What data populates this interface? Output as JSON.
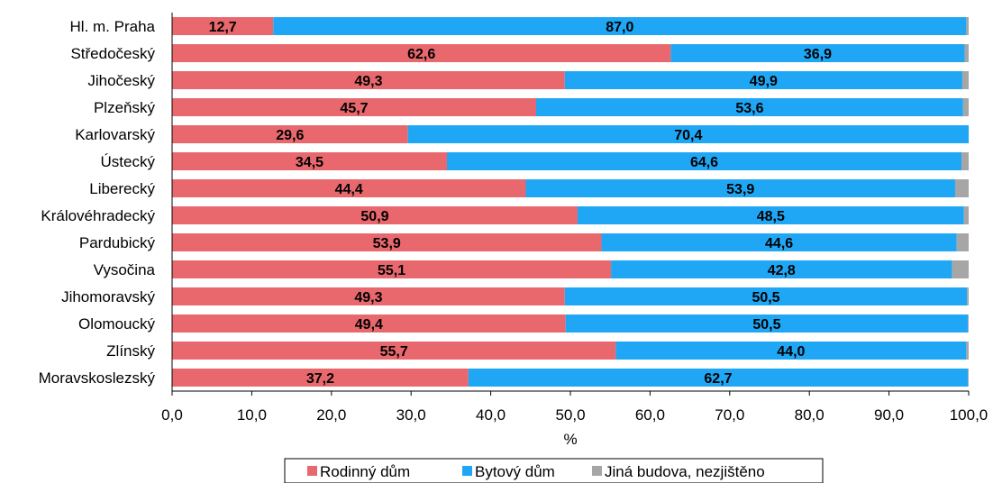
{
  "chart_data": {
    "type": "bar",
    "orientation": "horizontal",
    "stacked": true,
    "categories": [
      "Hl. m. Praha",
      "Středočeský",
      "Jihočeský",
      "Plzeňský",
      "Karlovarský",
      "Ústecký",
      "Liberecký",
      "Královéhradecký",
      "Pardubický",
      "Vysočina",
      "Jihomoravský",
      "Olomoucký",
      "Zlínský",
      "Moravskoslezský"
    ],
    "series": [
      {
        "name": "Rodinný dům",
        "color": "#E8686E",
        "values": [
          12.7,
          62.6,
          49.3,
          45.7,
          29.6,
          34.5,
          44.4,
          50.9,
          53.9,
          55.1,
          49.3,
          49.4,
          55.7,
          37.2
        ],
        "labels": [
          "12,7",
          "62,6",
          "49,3",
          "45,7",
          "29,6",
          "34,5",
          "44,4",
          "50,9",
          "53,9",
          "55,1",
          "49,3",
          "49,4",
          "55,7",
          "37,2"
        ]
      },
      {
        "name": "Bytový dům",
        "color": "#1FA7F5",
        "values": [
          87.0,
          36.9,
          49.9,
          53.6,
          70.4,
          64.6,
          53.9,
          48.5,
          44.6,
          42.8,
          50.5,
          50.5,
          44.0,
          62.7
        ],
        "labels": [
          "87,0",
          "36,9",
          "49,9",
          "53,6",
          "70,4",
          "64,6",
          "53,9",
          "48,5",
          "44,6",
          "42,8",
          "50,5",
          "50,5",
          "44,0",
          "62,7"
        ]
      },
      {
        "name": "Jiná budova, nezjištěno",
        "color": "#A6A6A6",
        "values": [
          0.3,
          0.5,
          0.8,
          0.7,
          0.0,
          0.9,
          1.7,
          0.6,
          1.5,
          2.1,
          0.2,
          0.1,
          0.3,
          0.1
        ]
      }
    ],
    "xlim": [
      0,
      100
    ],
    "xticks": [
      "0,0",
      "10,0",
      "20,0",
      "30,0",
      "40,0",
      "50,0",
      "60,0",
      "70,0",
      "80,0",
      "90,0",
      "100,0"
    ],
    "xlabel": "%",
    "legend_position": "bottom"
  }
}
